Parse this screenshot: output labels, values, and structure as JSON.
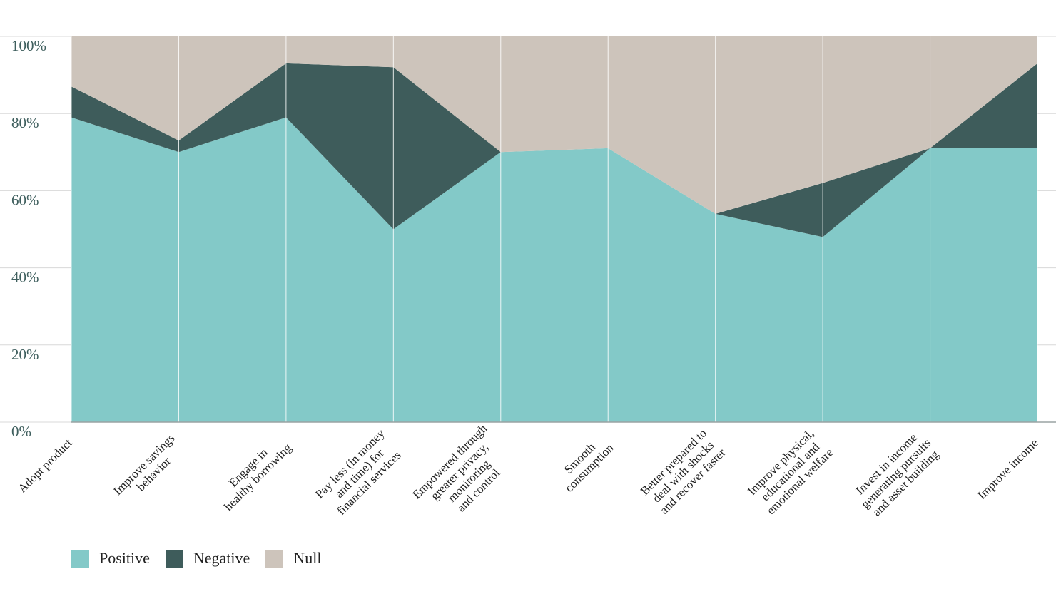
{
  "chart_data": {
    "type": "area",
    "stacked": true,
    "categories": [
      "Adopt product",
      "Improve savings\nbehavior",
      "Engage in\nhealthy borrowing",
      "Pay less (in money\nand time) for\nfinancial services",
      "Empowered through\ngreater privacy,\nmonitoring\nand control",
      "Smooth\nconsumption",
      "Better prepared to\ndeal with shocks\nand recover faster",
      "Improve physical,\neducational and\nemotional welfare",
      "Invest in income\ngenerating pursuits\nand asset building",
      "Improve income"
    ],
    "series": [
      {
        "name": "Positive",
        "color": "#83c9c8",
        "values": [
          79,
          70,
          79,
          50,
          70,
          71,
          54,
          48,
          71,
          71
        ]
      },
      {
        "name": "Negative",
        "color": "#3e5c5b",
        "values": [
          8,
          3,
          14,
          42,
          0,
          0,
          0,
          14,
          0,
          22
        ]
      },
      {
        "name": "Null",
        "color": "#cdc4bb",
        "values": [
          13,
          27,
          7,
          8,
          30,
          29,
          46,
          38,
          29,
          7
        ]
      }
    ],
    "yticks": [
      "0%",
      "20%",
      "40%",
      "60%",
      "80%",
      "100%"
    ],
    "ylim": [
      0,
      100
    ],
    "grid": true,
    "legend_position": "bottom-left"
  }
}
